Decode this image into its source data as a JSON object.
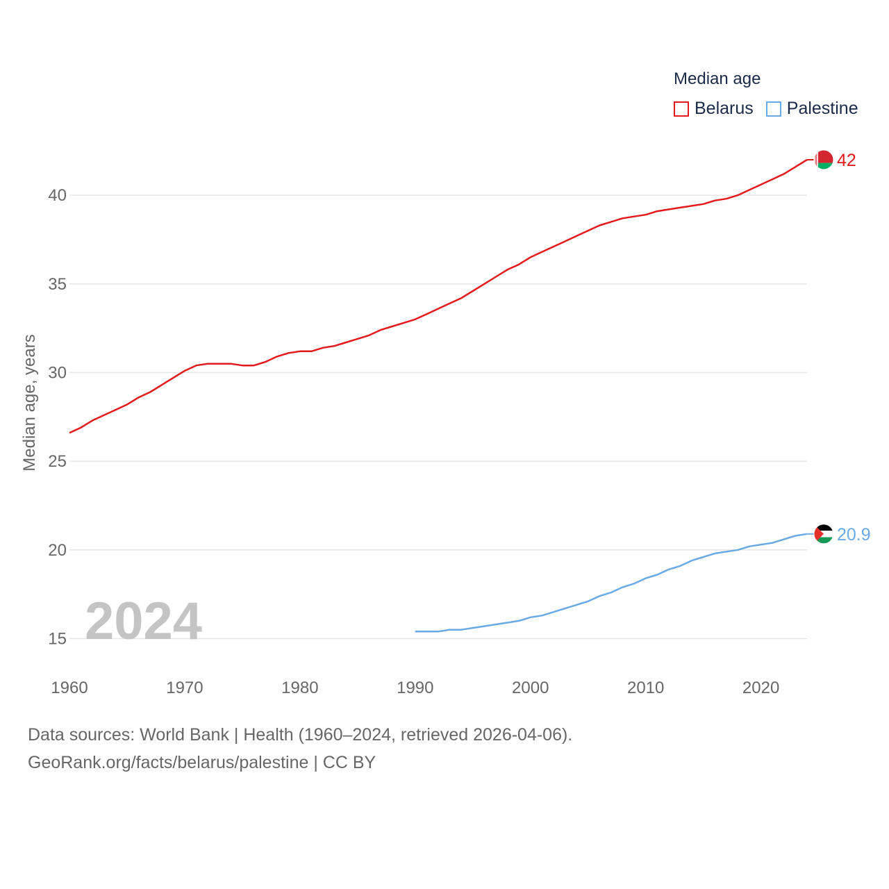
{
  "legend": {
    "title": "Median age",
    "items": [
      {
        "name": "Belarus",
        "color": "#e31a1c"
      },
      {
        "name": "Palestine",
        "color": "#6aaae4"
      }
    ]
  },
  "year_label": "2024",
  "source": {
    "line1": "Data sources: World Bank | Health (1960–2024, retrieved 2026-04-06).",
    "line2": "GeoRank.org/facts/belarus/palestine | CC BY"
  },
  "chart_data": {
    "type": "line",
    "title": "Median age",
    "xlabel": "",
    "ylabel": "Median age, years",
    "xlim": [
      1960,
      2024
    ],
    "ylim": [
      14,
      42
    ],
    "yticks": [
      15,
      20,
      25,
      30,
      35,
      40
    ],
    "xticks": [
      1960,
      1970,
      1980,
      1990,
      2000,
      2010,
      2020
    ],
    "grid": true,
    "legend_position": "top-right",
    "series": [
      {
        "name": "Belarus",
        "color": "#e31a1c",
        "end_label": "42",
        "x": [
          1960,
          1961,
          1962,
          1963,
          1964,
          1965,
          1966,
          1967,
          1968,
          1969,
          1970,
          1971,
          1972,
          1973,
          1974,
          1975,
          1976,
          1977,
          1978,
          1979,
          1980,
          1981,
          1982,
          1983,
          1984,
          1985,
          1986,
          1987,
          1988,
          1989,
          1990,
          1991,
          1992,
          1993,
          1994,
          1995,
          1996,
          1997,
          1998,
          1999,
          2000,
          2001,
          2002,
          2003,
          2004,
          2005,
          2006,
          2007,
          2008,
          2009,
          2010,
          2011,
          2012,
          2013,
          2014,
          2015,
          2016,
          2017,
          2018,
          2019,
          2020,
          2021,
          2022,
          2023,
          2024
        ],
        "values": [
          26.6,
          26.9,
          27.3,
          27.6,
          27.9,
          28.2,
          28.6,
          28.9,
          29.3,
          29.7,
          30.1,
          30.4,
          30.5,
          30.5,
          30.5,
          30.4,
          30.4,
          30.6,
          30.9,
          31.1,
          31.2,
          31.2,
          31.4,
          31.5,
          31.7,
          31.9,
          32.1,
          32.4,
          32.6,
          32.8,
          33.0,
          33.3,
          33.6,
          33.9,
          34.2,
          34.6,
          35.0,
          35.4,
          35.8,
          36.1,
          36.5,
          36.8,
          37.1,
          37.4,
          37.7,
          38.0,
          38.3,
          38.5,
          38.7,
          38.8,
          38.9,
          39.1,
          39.2,
          39.3,
          39.4,
          39.5,
          39.7,
          39.8,
          40.0,
          40.3,
          40.6,
          40.9,
          41.2,
          41.6,
          42.0
        ]
      },
      {
        "name": "Palestine",
        "color": "#6aaae4",
        "end_label": "20.9",
        "x": [
          1990,
          1991,
          1992,
          1993,
          1994,
          1995,
          1996,
          1997,
          1998,
          1999,
          2000,
          2001,
          2002,
          2003,
          2004,
          2005,
          2006,
          2007,
          2008,
          2009,
          2010,
          2011,
          2012,
          2013,
          2014,
          2015,
          2016,
          2017,
          2018,
          2019,
          2020,
          2021,
          2022,
          2023,
          2024
        ],
        "values": [
          15.4,
          15.4,
          15.4,
          15.5,
          15.5,
          15.6,
          15.7,
          15.8,
          15.9,
          16.0,
          16.2,
          16.3,
          16.5,
          16.7,
          16.9,
          17.1,
          17.4,
          17.6,
          17.9,
          18.1,
          18.4,
          18.6,
          18.9,
          19.1,
          19.4,
          19.6,
          19.8,
          19.9,
          20.0,
          20.2,
          20.3,
          20.4,
          20.6,
          20.8,
          20.9
        ]
      }
    ]
  }
}
